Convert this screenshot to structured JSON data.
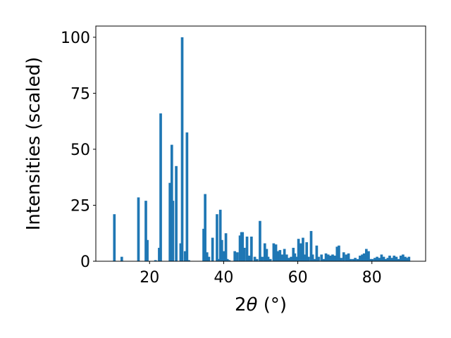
{
  "chart_data": {
    "type": "bar",
    "title": "",
    "xlabel": "2θ (°)",
    "ylabel": "Intensities (scaled)",
    "xlim": [
      5.5,
      94.5
    ],
    "ylim": [
      0,
      105
    ],
    "xticks": [
      20,
      40,
      60,
      80
    ],
    "yticks": [
      0,
      25,
      50,
      75,
      100
    ],
    "grid": false,
    "bar_color": "#1f77b4",
    "bar_width": 0.7,
    "x": [
      10.5,
      12.5,
      17.0,
      19.0,
      19.4,
      21.6,
      22.6,
      23.0,
      25.5,
      26.0,
      26.3,
      27.2,
      28.4,
      28.8,
      29.6,
      30.1,
      30.6,
      34.6,
      35.0,
      35.5,
      36.0,
      37.0,
      38.2,
      38.6,
      39.1,
      39.5,
      40.0,
      40.6,
      41.0,
      41.5,
      43.0,
      43.7,
      44.4,
      44.8,
      45.1,
      45.6,
      46.3,
      46.8,
      47.5,
      48.4,
      49.0,
      49.8,
      50.4,
      51.1,
      51.6,
      52.0,
      52.6,
      53.5,
      54.1,
      54.6,
      55.2,
      55.8,
      56.4,
      57.0,
      57.6,
      58.2,
      58.8,
      59.2,
      59.7,
      60.2,
      60.9,
      61.4,
      61.9,
      62.4,
      62.9,
      63.6,
      64.0,
      64.5,
      65.1,
      65.6,
      66.4,
      67.0,
      67.6,
      68.2,
      68.8,
      69.4,
      70.0,
      70.6,
      71.1,
      71.7,
      72.4,
      73.1,
      73.7,
      74.2,
      74.9,
      75.5,
      76.2,
      76.8,
      77.4,
      77.9,
      78.5,
      79.1,
      79.6,
      80.1,
      80.8,
      81.4,
      82.0,
      82.6,
      83.2,
      83.8,
      84.3,
      84.8,
      85.4,
      86.0,
      86.6,
      87.2,
      87.8,
      88.4,
      89.0,
      89.5,
      90.0
    ],
    "values": [
      21,
      2,
      28.5,
      27,
      9.5,
      0.5,
      6,
      66,
      35,
      52,
      27,
      42.5,
      8,
      100,
      4.5,
      57.5,
      0.5,
      14.5,
      30,
      4,
      2,
      10.5,
      21,
      1,
      23,
      9.5,
      4.5,
      12.5,
      1,
      0.5,
      4.5,
      4,
      11.5,
      13,
      13,
      6,
      11,
      2.5,
      11,
      2,
      1,
      18,
      2,
      8,
      5.5,
      2,
      1,
      8,
      7.5,
      4.5,
      5,
      3,
      5.5,
      3,
      1.5,
      2,
      6,
      3.5,
      2,
      10,
      8,
      10.5,
      3,
      8.5,
      2,
      13.5,
      3,
      1,
      7,
      2,
      3,
      1,
      3.5,
      3,
      2.5,
      3,
      2.5,
      6.5,
      7,
      1.5,
      4,
      3,
      3.5,
      1,
      1,
      1.5,
      1,
      2.5,
      3,
      3.5,
      5.5,
      4.5,
      1,
      1,
      1.5,
      2,
      1.5,
      3,
      2,
      1,
      1.5,
      2.5,
      1.5,
      2.5,
      2,
      1,
      2.5,
      3,
      2,
      1.5,
      2
    ]
  }
}
